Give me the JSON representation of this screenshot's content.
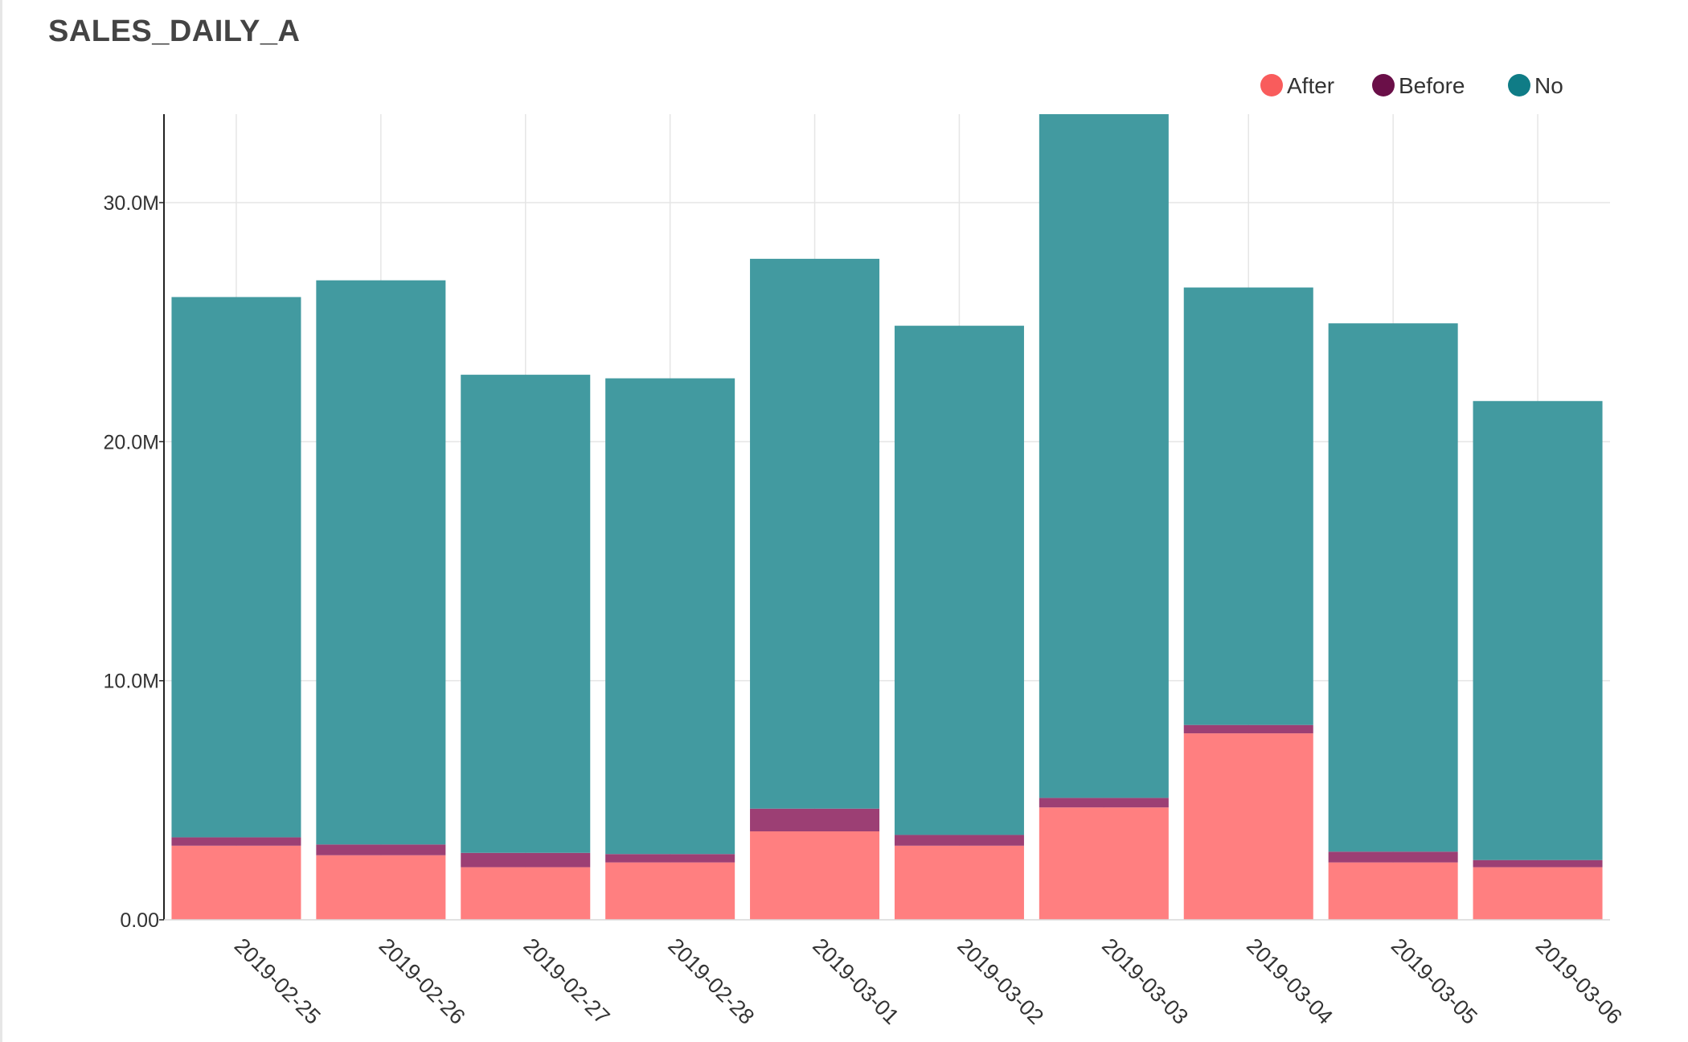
{
  "chart_data": {
    "type": "bar",
    "stacked": true,
    "title": "SALES_DAILY_A",
    "xlabel": "",
    "ylabel": "",
    "categories": [
      "2019-02-25",
      "2019-02-26",
      "2019-02-27",
      "2019-02-28",
      "2019-03-01",
      "2019-03-02",
      "2019-03-03",
      "2019-03-04",
      "2019-03-05",
      "2019-03-06"
    ],
    "series": [
      {
        "name": "After",
        "color": "#ff7f80",
        "values": [
          3.1,
          2.7,
          2.2,
          2.4,
          3.7,
          3.1,
          4.7,
          7.8,
          2.4,
          2.2
        ]
      },
      {
        "name": "Before",
        "color": "#9c3f74",
        "values": [
          0.35,
          0.45,
          0.6,
          0.35,
          0.95,
          0.45,
          0.4,
          0.35,
          0.45,
          0.3
        ]
      },
      {
        "name": "No",
        "color": "#429aa0",
        "values": [
          22.6,
          23.6,
          20.0,
          19.9,
          23.0,
          21.3,
          29.7,
          18.3,
          22.1,
          19.2
        ]
      }
    ],
    "ylim": [
      0,
      33.7
    ],
    "yticks": [
      0,
      10,
      20,
      30
    ],
    "ytick_labels": [
      "0.00",
      "10.0M",
      "20.0M",
      "30.0M"
    ],
    "grid": true,
    "legend": {
      "position": "top-right",
      "items": [
        "After",
        "Before",
        "No"
      ]
    },
    "legend_marker_colors": [
      "#f95c5c",
      "#6a0f48",
      "#0f7c86"
    ]
  }
}
